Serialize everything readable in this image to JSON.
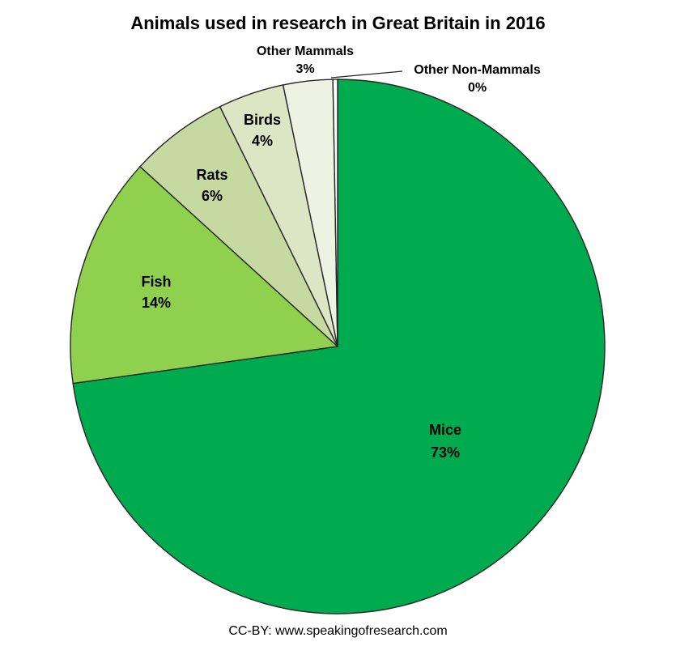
{
  "chart_data": {
    "type": "pie",
    "title": "Animals used in research in Great Britain in 2016",
    "source_credit": "CC-BY: www.speakingofresearch.com",
    "direction": "clockwise",
    "start_angle_deg": 0,
    "legend": "none",
    "grid": "off",
    "border_color": "#262626",
    "slices": [
      {
        "label": "Mice",
        "value": 73,
        "display": "73%",
        "color": "#00AB50"
      },
      {
        "label": "Fish",
        "value": 14,
        "display": "14%",
        "color": "#8FD04E"
      },
      {
        "label": "Rats",
        "value": 6,
        "display": "6%",
        "color": "#C5D9A0"
      },
      {
        "label": "Birds",
        "value": 4,
        "display": "4%",
        "color": "#DCE6C4"
      },
      {
        "label": "Other Mammals",
        "value": 3,
        "display": "3%",
        "color": "#EDF2E2"
      },
      {
        "label": "Other Non-Mammals",
        "value": 0,
        "display": "0%",
        "color": "#FFFFFF"
      }
    ]
  }
}
